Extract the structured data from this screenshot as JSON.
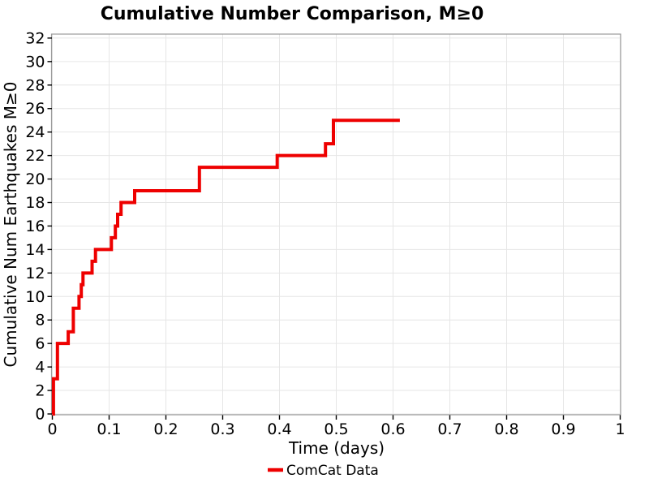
{
  "chart_data": {
    "type": "line",
    "subtype": "step",
    "title": "Cumulative Number Comparison, M≥0",
    "xlabel": "Time (days)",
    "ylabel": "Cumulative Num Earthquakes M≥0",
    "xlim": [
      0,
      1
    ],
    "ylim": [
      0,
      32
    ],
    "xticks": [
      0,
      0.1,
      0.2,
      0.3,
      0.4,
      0.5,
      0.6,
      0.7,
      0.8,
      0.9,
      1
    ],
    "xtick_labels": [
      "0",
      "0.1",
      "0.2",
      "0.3",
      "0.4",
      "0.5",
      "0.6",
      "0.7",
      "0.8",
      "0.9",
      "1"
    ],
    "yticks": [
      0,
      2,
      4,
      6,
      8,
      10,
      12,
      14,
      16,
      18,
      20,
      22,
      24,
      26,
      28,
      30,
      32
    ],
    "grid": true,
    "legend_position": "bottom-center",
    "series": [
      {
        "name": "ComCat Data",
        "color": "#ee0000",
        "line_width": 4,
        "start": [
          0,
          0
        ],
        "events": [
          [
            0.002,
            3
          ],
          [
            0.009,
            6
          ],
          [
            0.028,
            7
          ],
          [
            0.037,
            9
          ],
          [
            0.047,
            10
          ],
          [
            0.051,
            11
          ],
          [
            0.054,
            12
          ],
          [
            0.07,
            13
          ],
          [
            0.076,
            14
          ],
          [
            0.104,
            15
          ],
          [
            0.111,
            16
          ],
          [
            0.115,
            17
          ],
          [
            0.121,
            18
          ],
          [
            0.145,
            19
          ],
          [
            0.259,
            21
          ],
          [
            0.396,
            22
          ],
          [
            0.481,
            23
          ],
          [
            0.495,
            25
          ]
        ],
        "end_time": 0.612,
        "final_count": 25
      }
    ]
  },
  "colors": {
    "background": "#ffffff",
    "grid": "#e6e6e6",
    "plot_border": "#9b9b9b",
    "tick": "#000000",
    "text": "#000000"
  }
}
